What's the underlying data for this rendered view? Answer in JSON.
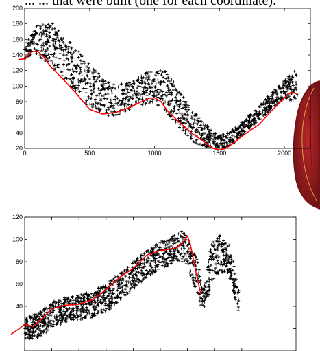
{
  "caption": "... ... that were built (one for each coordinate).",
  "colors": {
    "scatter": "#000000",
    "fit": "#ff0000",
    "organ_fill": "#b8262a",
    "organ_edge": "#6e1214",
    "organ_highlight": "#e0a23a"
  },
  "chart_data": [
    {
      "type": "scatter",
      "title": "",
      "xlabel": "",
      "ylabel": "",
      "xlim": [
        0,
        2200
      ],
      "ylim": [
        20,
        200
      ],
      "xticks": [
        0,
        500,
        1000,
        1500,
        2000
      ],
      "yticks": [
        20,
        40,
        60,
        80,
        100,
        120,
        140,
        160,
        180,
        200
      ],
      "grid": false,
      "series": [
        {
          "marker": "+",
          "band": [
            {
              "x": 0,
              "lo": 135,
              "hi": 160
            },
            {
              "x": 100,
              "lo": 140,
              "hi": 178
            },
            {
              "x": 200,
              "lo": 125,
              "hi": 184
            },
            {
              "x": 300,
              "lo": 110,
              "hi": 165
            },
            {
              "x": 400,
              "lo": 90,
              "hi": 148
            },
            {
              "x": 500,
              "lo": 72,
              "hi": 130
            },
            {
              "x": 600,
              "lo": 62,
              "hi": 110
            },
            {
              "x": 700,
              "lo": 62,
              "hi": 102
            },
            {
              "x": 800,
              "lo": 68,
              "hi": 105
            },
            {
              "x": 900,
              "lo": 75,
              "hi": 115
            },
            {
              "x": 1000,
              "lo": 78,
              "hi": 122
            },
            {
              "x": 1100,
              "lo": 65,
              "hi": 118
            },
            {
              "x": 1200,
              "lo": 45,
              "hi": 92
            },
            {
              "x": 1300,
              "lo": 28,
              "hi": 68
            },
            {
              "x": 1400,
              "lo": 20,
              "hi": 50
            },
            {
              "x": 1500,
              "lo": 17,
              "hi": 36
            },
            {
              "x": 1600,
              "lo": 25,
              "hi": 44
            },
            {
              "x": 1700,
              "lo": 40,
              "hi": 58
            },
            {
              "x": 1800,
              "lo": 55,
              "hi": 74
            },
            {
              "x": 1900,
              "lo": 70,
              "hi": 92
            },
            {
              "x": 2000,
              "lo": 82,
              "hi": 108
            },
            {
              "x": 2100,
              "lo": 82,
              "hi": 124
            }
          ]
        },
        {
          "type": "line",
          "marker": "none",
          "x": [
            -50,
            0,
            50,
            100,
            150,
            200,
            300,
            400,
            500,
            600,
            700,
            800,
            900,
            950,
            1000,
            1050,
            1100,
            1200,
            1300,
            1400,
            1450,
            1500,
            1550,
            1600,
            1700,
            1800,
            1900,
            2000,
            2050,
            2100
          ],
          "y": [
            134,
            135,
            144,
            145,
            137,
            125,
            108,
            90,
            70,
            64,
            66,
            72,
            80,
            84,
            85,
            80,
            68,
            52,
            38,
            26,
            20,
            18,
            20,
            26,
            39,
            50,
            68,
            85,
            92,
            90
          ]
        }
      ]
    },
    {
      "type": "scatter",
      "title": "",
      "xlabel": "",
      "ylabel": "",
      "xlim": [
        0,
        500
      ],
      "ylim": [
        0,
        120
      ],
      "yticks": [
        0,
        20,
        40,
        60,
        80,
        100,
        120
      ],
      "ytick_labels": [
        "",
        "",
        "40",
        "60",
        "80",
        "100",
        "120"
      ],
      "xticks": [
        0,
        50,
        100,
        150,
        200,
        250,
        300,
        350,
        400,
        450
      ],
      "xtick_labels": [],
      "grid": false,
      "series": [
        {
          "marker": "+",
          "band": [
            {
              "x": 0,
              "lo": 10,
              "hi": 30
            },
            {
              "x": 25,
              "lo": 12,
              "hi": 34
            },
            {
              "x": 50,
              "lo": 20,
              "hi": 44
            },
            {
              "x": 75,
              "lo": 26,
              "hi": 48
            },
            {
              "x": 100,
              "lo": 28,
              "hi": 50
            },
            {
              "x": 125,
              "lo": 30,
              "hi": 54
            },
            {
              "x": 150,
              "lo": 35,
              "hi": 60
            },
            {
              "x": 175,
              "lo": 44,
              "hi": 70
            },
            {
              "x": 200,
              "lo": 55,
              "hi": 80
            },
            {
              "x": 225,
              "lo": 66,
              "hi": 90
            },
            {
              "x": 250,
              "lo": 74,
              "hi": 98
            },
            {
              "x": 275,
              "lo": 78,
              "hi": 104
            },
            {
              "x": 290,
              "lo": 80,
              "hi": 107
            },
            {
              "x": 300,
              "lo": 74,
              "hi": 105
            },
            {
              "x": 310,
              "lo": 62,
              "hi": 96
            },
            {
              "x": 320,
              "lo": 45,
              "hi": 78
            },
            {
              "x": 330,
              "lo": 35,
              "hi": 55
            },
            {
              "x": 345,
              "lo": 60,
              "hi": 100
            },
            {
              "x": 360,
              "lo": 70,
              "hi": 104
            },
            {
              "x": 375,
              "lo": 70,
              "hi": 98
            },
            {
              "x": 385,
              "lo": 50,
              "hi": 80
            },
            {
              "x": 395,
              "lo": 32,
              "hi": 55
            }
          ]
        },
        {
          "type": "line",
          "marker": "none",
          "x": [
            -25,
            -10,
            0,
            15,
            30,
            50,
            75,
            100,
            125,
            150,
            175,
            200,
            225,
            250,
            275,
            290,
            300,
            305,
            315,
            325
          ],
          "y": [
            15,
            20,
            24,
            22,
            28,
            38,
            41,
            42,
            46,
            55,
            66,
            74,
            86,
            90,
            92,
            96,
            103,
            96,
            72,
            50
          ]
        }
      ]
    }
  ]
}
